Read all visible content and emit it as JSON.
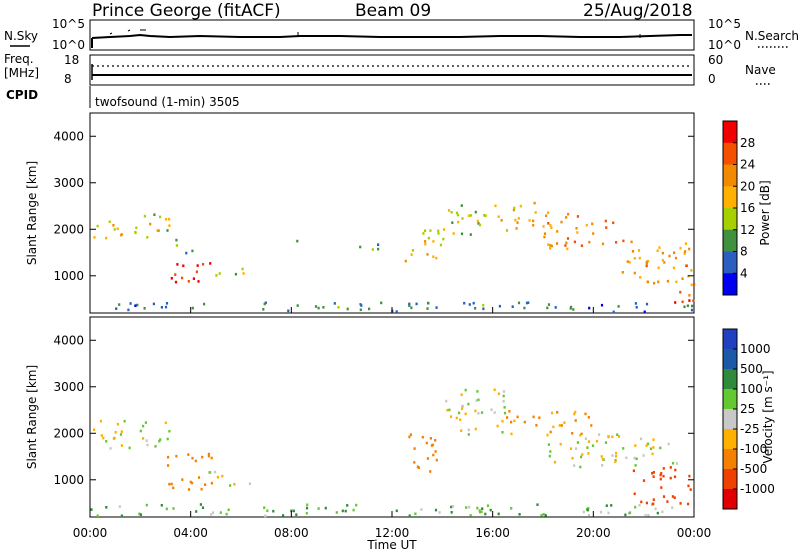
{
  "header": {
    "station": "Prince George (fitACF)",
    "beam": "Beam 09",
    "date": "25/Aug/2018"
  },
  "top_panels": {
    "nsky_label": "N.Sky",
    "nsearch_label": "N.Search",
    "freq_label": "Freq.",
    "freq_unit": "[MHz]",
    "nave_label": "Nave",
    "cpid_label": "CPID",
    "cpid_text": "twofsound (1-min) 3505",
    "noise_ticks": [
      "10^5",
      "10^0"
    ],
    "freq_ticks": [
      "18",
      "8"
    ],
    "nave_ticks": [
      "60",
      "0"
    ]
  },
  "colorbars": {
    "power": {
      "label": "Power [dB]",
      "ticks": [
        "28",
        "24",
        "20",
        "16",
        "12",
        "8",
        "4"
      ],
      "colors": [
        "#f00000",
        "#f45000",
        "#f28a00",
        "#ffb000",
        "#a8d000",
        "#409040",
        "#2a5fc0",
        "#0000f0"
      ]
    },
    "velocity": {
      "label": "Velocity [m s⁻¹]",
      "ticks": [
        "1000",
        "500",
        "100",
        "25",
        "-25",
        "-100",
        "-500",
        "-1000"
      ],
      "colors": [
        "#2040c0",
        "#1c5aa8",
        "#2f8a3c",
        "#64c832",
        "#c8c8c8",
        "#ffb000",
        "#f48000",
        "#f04000",
        "#e00000"
      ]
    }
  },
  "chart_data": [
    {
      "type": "heatmap",
      "panel": "power",
      "ylabel": "Slant Range [km]",
      "ylim": [
        200,
        4500
      ],
      "y_ticks": [
        1000,
        2000,
        3000,
        4000
      ],
      "xlim_hours": [
        0,
        24
      ],
      "colorbar_label": "Power [dB]",
      "colorbar_range": [
        0,
        30
      ],
      "echo_regions": [
        {
          "t": [
            0.0,
            2.8
          ],
          "r": [
            1800,
            2200
          ],
          "level_db": 16
        },
        {
          "t": [
            2.0,
            3.2
          ],
          "r": [
            2000,
            2400
          ],
          "level_db": 14
        },
        {
          "t": [
            3.3,
            4.3
          ],
          "r": [
            1500,
            1800
          ],
          "level_db": 8
        },
        {
          "t": [
            3.0,
            4.8
          ],
          "r": [
            800,
            1300
          ],
          "level_db": 28
        },
        {
          "t": [
            4.5,
            6.4
          ],
          "r": [
            1000,
            1200
          ],
          "level_db": 12
        },
        {
          "t": [
            7.8,
            8.2
          ],
          "r": [
            1600,
            1800
          ],
          "level_db": 8
        },
        {
          "t": [
            10.5,
            11.5
          ],
          "r": [
            1500,
            1800
          ],
          "level_db": 10
        },
        {
          "t": [
            12.5,
            14.0
          ],
          "r": [
            1300,
            2100
          ],
          "level_db": 16
        },
        {
          "t": [
            14.0,
            16.0
          ],
          "r": [
            1900,
            2600
          ],
          "level_db": 14
        },
        {
          "t": [
            16.0,
            18.0
          ],
          "r": [
            2000,
            2600
          ],
          "level_db": 18
        },
        {
          "t": [
            18.0,
            21.0
          ],
          "r": [
            1600,
            2400
          ],
          "level_db": 22
        },
        {
          "t": [
            21.0,
            24.0
          ],
          "r": [
            800,
            1800
          ],
          "level_db": 20
        },
        {
          "t": [
            23.0,
            24.0
          ],
          "r": [
            400,
            900
          ],
          "level_db": 28
        },
        {
          "t": [
            0.0,
            24.0
          ],
          "r": [
            250,
            450
          ],
          "level_db": 6
        }
      ]
    },
    {
      "type": "heatmap",
      "panel": "velocity",
      "ylabel": "Slant Range [km]",
      "xlabel": "Time UT",
      "ylim": [
        200,
        4500
      ],
      "y_ticks": [
        1000,
        2000,
        3000,
        4000
      ],
      "xlim_hours": [
        0,
        24
      ],
      "x_ticks": [
        "00:00",
        "04:00",
        "08:00",
        "12:00",
        "16:00",
        "20:00",
        "00:00"
      ],
      "colorbar_label": "Velocity [m s⁻¹]",
      "colorbar_ticks": [
        1000,
        500,
        100,
        25,
        -25,
        -100,
        -500,
        -1000
      ],
      "echo_regions": [
        {
          "t": [
            0.0,
            3.2
          ],
          "r": [
            1700,
            2300
          ],
          "vel": 0
        },
        {
          "t": [
            3.0,
            4.8
          ],
          "r": [
            800,
            1600
          ],
          "vel": -300
        },
        {
          "t": [
            4.5,
            6.4
          ],
          "r": [
            900,
            1200
          ],
          "vel": 0
        },
        {
          "t": [
            0.0,
            24.0
          ],
          "r": [
            250,
            500
          ],
          "vel": 80
        },
        {
          "t": [
            12.5,
            14.0
          ],
          "r": [
            1200,
            2000
          ],
          "vel": -300
        },
        {
          "t": [
            14.0,
            16.5
          ],
          "r": [
            2000,
            3000
          ],
          "vel": 0
        },
        {
          "t": [
            16.5,
            20.0
          ],
          "r": [
            2000,
            2500
          ],
          "vel": -150
        },
        {
          "t": [
            18.0,
            23.5
          ],
          "r": [
            1300,
            2000
          ],
          "vel": 0
        },
        {
          "t": [
            21.5,
            24.0
          ],
          "r": [
            500,
            1300
          ],
          "vel": -700
        }
      ]
    }
  ]
}
